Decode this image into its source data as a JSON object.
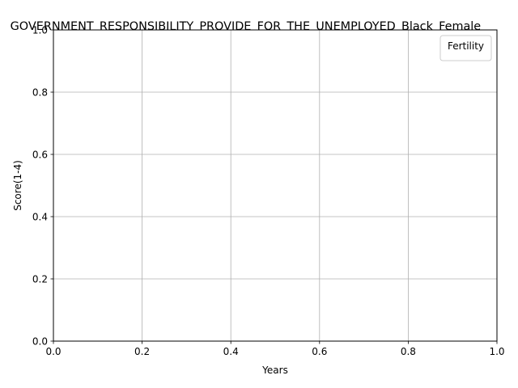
{
  "chart_data": {
    "type": "line",
    "title": "GOVERNMENT_RESPONSIBILITY_PROVIDE_FOR_THE_UNEMPLOYED_Black_Female_",
    "xlabel": "Years",
    "ylabel": "Score(1-4)",
    "xlim": [
      0.0,
      1.0
    ],
    "ylim": [
      0.0,
      1.0
    ],
    "x_ticks": [
      0.0,
      0.2,
      0.4,
      0.6,
      0.8,
      1.0
    ],
    "y_ticks": [
      0.0,
      0.2,
      0.4,
      0.6,
      0.8,
      1.0
    ],
    "x_tick_labels": [
      "0.0",
      "0.2",
      "0.4",
      "0.6",
      "0.8",
      "1.0"
    ],
    "y_tick_labels": [
      "0.0",
      "0.2",
      "0.4",
      "0.6",
      "0.8",
      "1.0"
    ],
    "grid": true,
    "legend": {
      "title": "Fertility",
      "position": "top-right",
      "entries": []
    },
    "series": []
  }
}
